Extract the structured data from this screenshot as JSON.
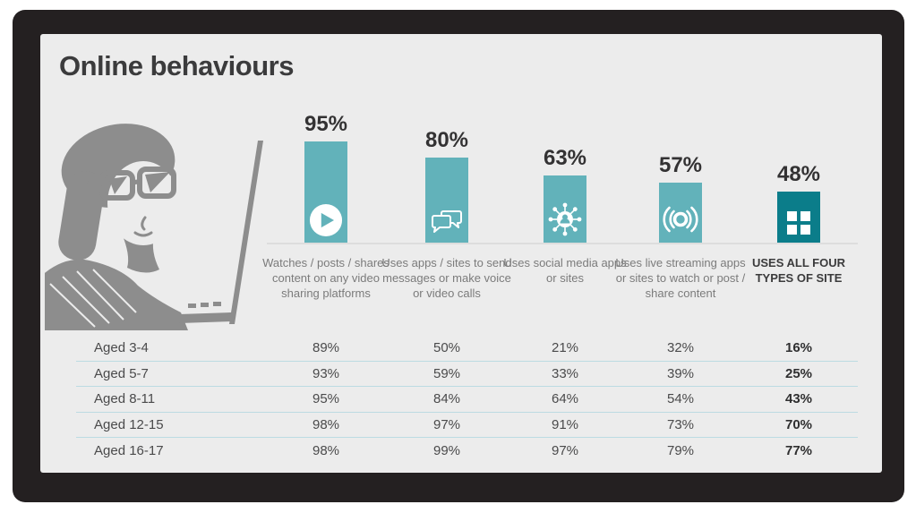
{
  "title": "Online behaviours",
  "colors": {
    "background": "#ECECEC",
    "frame": "#242021",
    "bar_teal": "#62B2BA",
    "bar_dark_teal": "#0B7D8A",
    "text_dark": "#3B3B3C",
    "text_gray": "#7B7B7B",
    "row_divider": "#BCDBE2",
    "baseline": "#DDDDDD",
    "illustration_gray": "#8D8D8D"
  },
  "illustration": {
    "name": "child-with-glasses-at-laptop"
  },
  "chart_data": {
    "type": "bar",
    "title": "Online behaviours",
    "unit": "percent",
    "categories": [
      "Watches / posts / shares content on any video sharing platforms",
      "Uses apps / sites to send messages or make voice or video calls",
      "Uses social media apps or sites",
      "Uses live streaming apps or sites to watch or post / share content",
      "USES ALL FOUR TYPES OF SITE"
    ],
    "values": [
      95,
      80,
      63,
      57,
      48
    ],
    "columns": [
      {
        "value": 95,
        "label": "95%",
        "icon": "play-icon",
        "description": "Watches / posts / shares content on any video sharing platforms",
        "emphasis": false
      },
      {
        "value": 80,
        "label": "80%",
        "icon": "chat-bubbles-icon",
        "description": "Uses apps / sites to send messages or make voice or video calls",
        "emphasis": false
      },
      {
        "value": 63,
        "label": "63%",
        "icon": "social-network-icon",
        "description": "Uses social media apps or sites",
        "emphasis": false
      },
      {
        "value": 57,
        "label": "57%",
        "icon": "live-streaming-icon",
        "description": "Uses live streaming apps or sites to watch or post / share content",
        "emphasis": false
      },
      {
        "value": 48,
        "label": "48%",
        "icon": "four-squares-icon",
        "description": "USES ALL FOUR TYPES OF SITE",
        "emphasis": true
      }
    ],
    "age_breakdown": {
      "rows": [
        {
          "label": "Aged 3-4",
          "values": [
            "89%",
            "50%",
            "21%",
            "32%",
            "16%"
          ]
        },
        {
          "label": "Aged 5-7",
          "values": [
            "93%",
            "59%",
            "33%",
            "39%",
            "25%"
          ]
        },
        {
          "label": "Aged 8-11",
          "values": [
            "95%",
            "84%",
            "64%",
            "54%",
            "43%"
          ]
        },
        {
          "label": "Aged 12-15",
          "values": [
            "98%",
            "97%",
            "91%",
            "73%",
            "70%"
          ]
        },
        {
          "label": "Aged 16-17",
          "values": [
            "98%",
            "99%",
            "97%",
            "79%",
            "77%"
          ]
        }
      ]
    },
    "layout": {
      "legend": false,
      "grid": false,
      "baseline_shown": true
    }
  }
}
